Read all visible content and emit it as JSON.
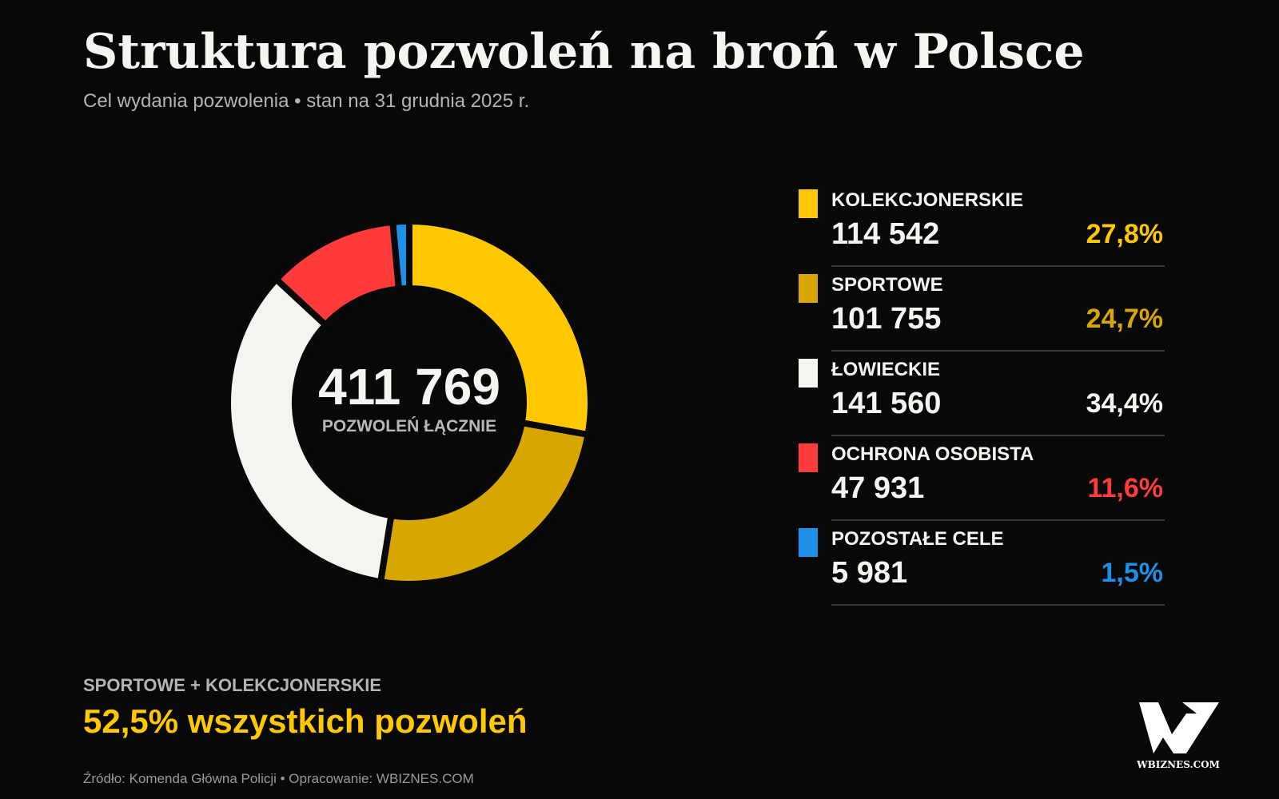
{
  "chart_data": {
    "type": "pie",
    "title": "Struktura pozwoleń na broń w Polsce",
    "subtitle": "Cel wydania pozwolenia • stan na 31 grudnia 2025 r.",
    "categories": [
      "KOLEKCJONERSKIE",
      "SPORTOWE",
      "ŁOWIECKIE",
      "OCHRONA OSOBISTA",
      "POZOSTAŁE CELE"
    ],
    "values": [
      114542,
      101755,
      141560,
      47931,
      5981
    ],
    "value_labels": [
      "114 542",
      "101 755",
      "141 560",
      "47 931",
      "5 981"
    ],
    "share_labels": [
      "27,8%",
      "24,7%",
      "34,4%",
      "11,6%",
      "1,5%"
    ],
    "colors": [
      "#ffc800",
      "#d8a600",
      "#f4f4f0",
      "#ff3b3b",
      "#1e90e8"
    ],
    "total": 411769,
    "total_label": "411 769",
    "total_caption": "POZWOLEŃ ŁĄCZNIE",
    "highlight_label": "SPORTOWE + KOLEKCJONERSKIE",
    "highlight_text": "52,5% wszystkich pozwoleń",
    "source": "Źródło: Komenda Główna Policji • Opracowanie: WBIZNES.COM",
    "logo_text": "WBIZNES.COM"
  }
}
